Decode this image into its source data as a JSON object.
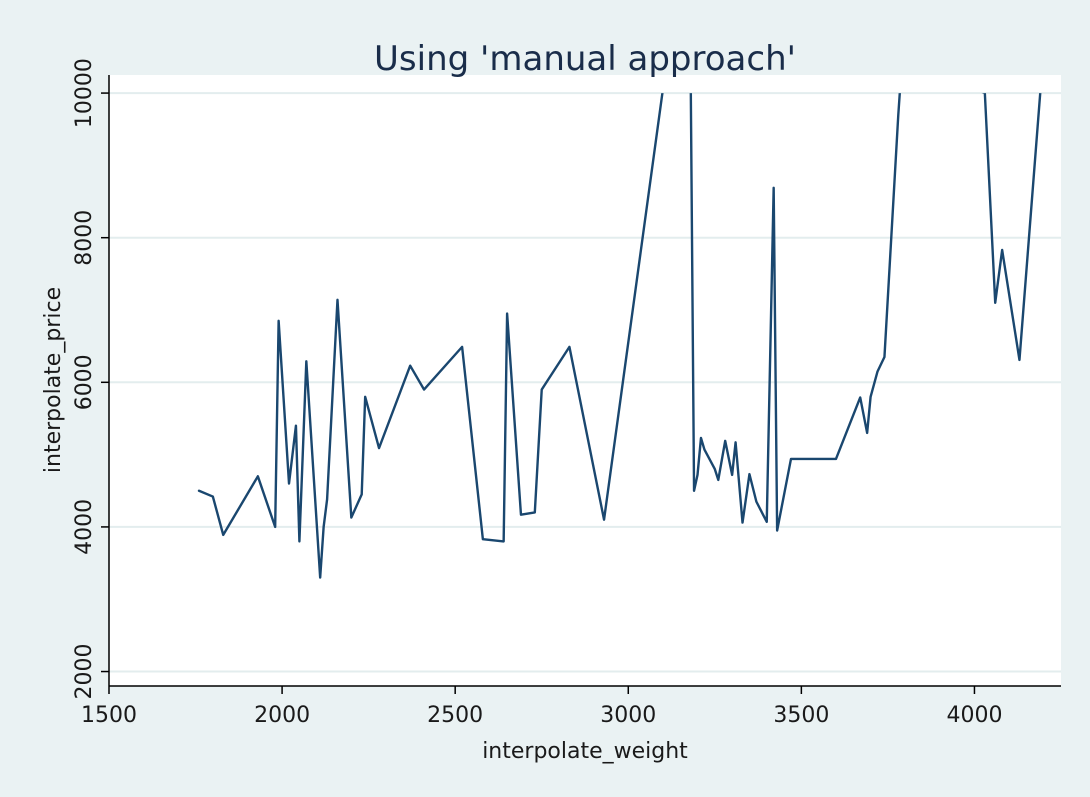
{
  "chart_data": {
    "type": "line",
    "title": "Using 'manual approach'",
    "xlabel": "interpolate_weight",
    "ylabel": "interpolate_price",
    "xlim": [
      1500,
      4250
    ],
    "ylim": [
      1800,
      10250
    ],
    "xticks": [
      1500,
      2000,
      2500,
      3000,
      3500,
      4000
    ],
    "yticks": [
      2000,
      4000,
      6000,
      8000,
      10000
    ],
    "clip_top": 10000,
    "grid": true,
    "line_color": "#1a476f",
    "plot_bg": "#ffffff",
    "page_bg": "#eaf2f3",
    "series": [
      {
        "x": [
          1760,
          1800,
          1830,
          1930,
          1980,
          1990,
          2020,
          2040,
          2050,
          2070,
          2110,
          2120,
          2130,
          2160,
          2200,
          2230,
          2240,
          2280,
          2370,
          2410,
          2520,
          2580,
          2640,
          2650,
          2690,
          2730,
          2750,
          2830,
          2930,
          3110,
          3130,
          3170,
          3180,
          3190,
          3200,
          3210,
          3220,
          3250,
          3260,
          3280,
          3300,
          3310,
          3330,
          3350,
          3370,
          3400,
          3420,
          3430,
          3470,
          3600,
          3670,
          3690,
          3700,
          3720,
          3740,
          3780,
          3790,
          3830,
          4030,
          4060,
          4080,
          4130,
          4190
        ],
        "y": [
          4500,
          4420,
          3890,
          4700,
          4000,
          6850,
          4600,
          5400,
          3800,
          6290,
          3300,
          4000,
          4380,
          7140,
          4130,
          4450,
          5800,
          5090,
          6230,
          5900,
          6490,
          3830,
          3800,
          6950,
          4170,
          4200,
          5900,
          6490,
          4100,
          10400,
          11000,
          11000,
          10500,
          4500,
          4720,
          5230,
          5070,
          4800,
          4650,
          5190,
          4720,
          5170,
          4060,
          4730,
          4350,
          4070,
          8690,
          3950,
          4940,
          4940,
          5790,
          5300,
          5800,
          6150,
          6350,
          9700,
          11000,
          11000,
          10000,
          7100,
          7830,
          6310,
          10000
        ]
      }
    ]
  }
}
